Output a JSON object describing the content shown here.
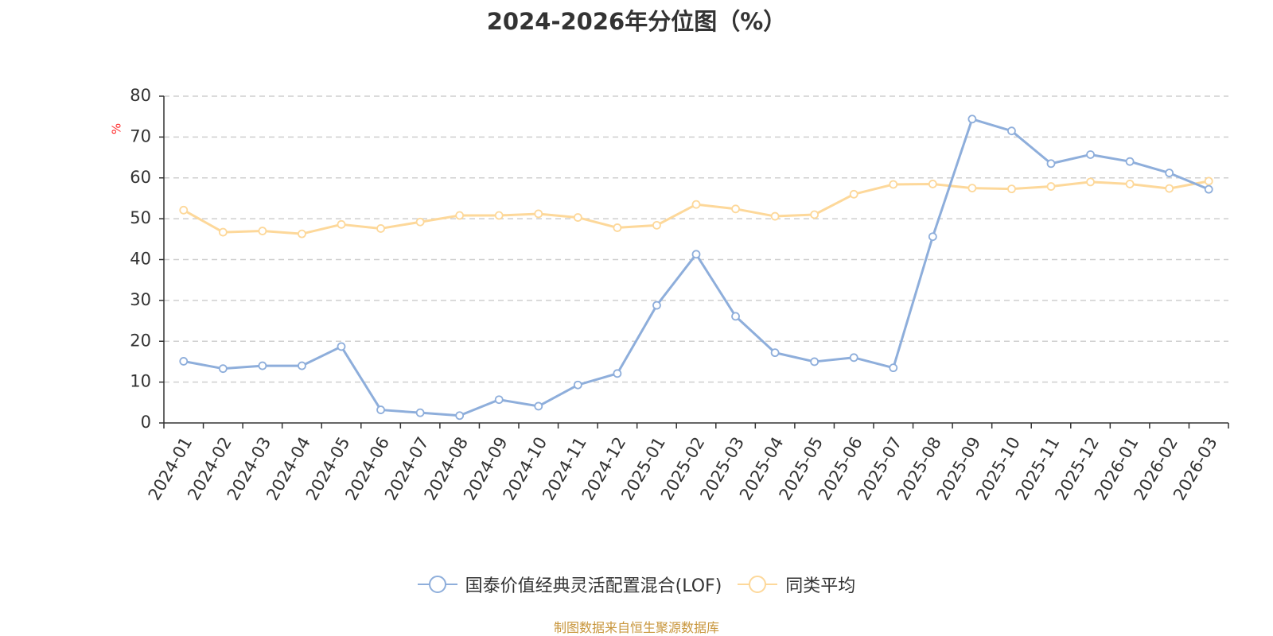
{
  "chart_data": {
    "type": "line",
    "title": "2024-2026年分位图（%）",
    "ylabel": "%",
    "xlabel": "",
    "ylim": [
      0,
      80
    ],
    "yticks": [
      0,
      10,
      20,
      30,
      40,
      50,
      60,
      70,
      80
    ],
    "grid": true,
    "legend_position": "bottom-center",
    "categories": [
      "2024-01",
      "2024-02",
      "2024-03",
      "2024-04",
      "2024-05",
      "2024-06",
      "2024-07",
      "2024-08",
      "2024-09",
      "2024-10",
      "2024-11",
      "2024-12",
      "2025-01",
      "2025-02",
      "2025-03",
      "2025-04",
      "2025-05",
      "2025-06",
      "2025-07",
      "2025-08",
      "2025-09",
      "2025-10",
      "2025-11",
      "2025-12",
      "2026-01",
      "2026-02",
      "2026-03"
    ],
    "series": [
      {
        "name": "国泰价值经典灵活配置混合(LOF)",
        "color": "#8eaedb",
        "values": [
          15.1,
          13.3,
          14.0,
          14.0,
          18.7,
          3.2,
          2.5,
          1.8,
          5.7,
          4.1,
          9.3,
          12.1,
          28.8,
          41.3,
          26.1,
          17.2,
          15.0,
          16.0,
          13.5,
          45.6,
          74.4,
          71.5,
          63.5,
          65.7,
          64.0,
          61.2,
          57.2
        ]
      },
      {
        "name": "同类平均",
        "color": "#fdd89a",
        "values": [
          52.1,
          46.7,
          47.0,
          46.3,
          48.6,
          47.6,
          49.2,
          50.8,
          50.8,
          51.2,
          50.3,
          47.8,
          48.4,
          53.5,
          52.4,
          50.6,
          51.0,
          56.0,
          58.4,
          58.5,
          57.5,
          57.3,
          57.9,
          59.0,
          58.5,
          57.4,
          59.2
        ]
      }
    ]
  },
  "source_note": "制图数据来自恒生聚源数据库"
}
